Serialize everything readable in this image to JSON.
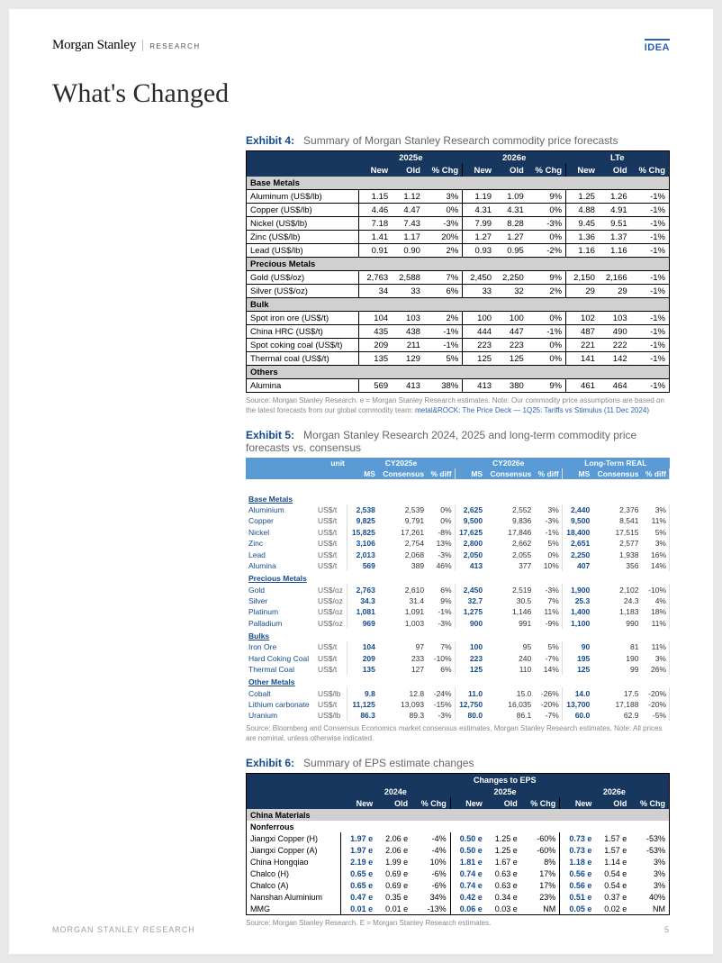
{
  "header": {
    "brand": "Morgan Stanley",
    "sub": "RESEARCH",
    "idea": "IDEA"
  },
  "title": "What's Changed",
  "footer": {
    "left": "MORGAN STANLEY RESEARCH",
    "page": "5"
  },
  "ex4": {
    "num": "Exhibit 4:",
    "title": "Summary of Morgan Stanley Research commodity price forecasts",
    "source_a": "Source: Morgan Stanley Research. e = Morgan Stanley Research estimates. Note: Our commodity price assumptions are based on the latest forecasts from our global commodity team: ",
    "source_link": "metal&ROCK: The Price Deck — 1Q25: Tariffs vs Stimulus (11 Dec 2024)",
    "groups": [
      "2025e",
      "2026e",
      "LTe"
    ],
    "cols": [
      "New",
      "Old",
      "% Chg"
    ],
    "sections": [
      {
        "name": "Base Metals",
        "rows": [
          {
            "n": "Aluminum (US$/lb)",
            "v": [
              "1.15",
              "1.12",
              "3%",
              "1.19",
              "1.09",
              "9%",
              "1.25",
              "1.26",
              "-1%"
            ]
          },
          {
            "n": "Copper (US$/lb)",
            "v": [
              "4.46",
              "4.47",
              "0%",
              "4.31",
              "4.31",
              "0%",
              "4.88",
              "4.91",
              "-1%"
            ]
          },
          {
            "n": "Nickel (US$/lb)",
            "v": [
              "7.18",
              "7.43",
              "-3%",
              "7.99",
              "8.28",
              "-3%",
              "9.45",
              "9.51",
              "-1%"
            ]
          },
          {
            "n": "Zinc (US$/lb)",
            "v": [
              "1.41",
              "1.17",
              "20%",
              "1.27",
              "1.27",
              "0%",
              "1.36",
              "1.37",
              "-1%"
            ]
          },
          {
            "n": "Lead (US$/lb)",
            "v": [
              "0.91",
              "0.90",
              "2%",
              "0.93",
              "0.95",
              "-2%",
              "1.16",
              "1.16",
              "-1%"
            ]
          }
        ]
      },
      {
        "name": "Precious Metals",
        "rows": [
          {
            "n": "Gold (US$/oz)",
            "v": [
              "2,763",
              "2,588",
              "7%",
              "2,450",
              "2,250",
              "9%",
              "2,150",
              "2,166",
              "-1%"
            ]
          },
          {
            "n": "Silver (US$/oz)",
            "v": [
              "34",
              "33",
              "6%",
              "33",
              "32",
              "2%",
              "29",
              "29",
              "-1%"
            ]
          }
        ]
      },
      {
        "name": "Bulk",
        "rows": [
          {
            "n": "Spot iron ore (US$/t)",
            "v": [
              "104",
              "103",
              "2%",
              "100",
              "100",
              "0%",
              "102",
              "103",
              "-1%"
            ]
          },
          {
            "n": "China HRC (US$/t)",
            "v": [
              "435",
              "438",
              "-1%",
              "444",
              "447",
              "-1%",
              "487",
              "490",
              "-1%"
            ]
          },
          {
            "n": "Spot coking coal (US$/t)",
            "v": [
              "209",
              "211",
              "-1%",
              "223",
              "223",
              "0%",
              "221",
              "222",
              "-1%"
            ]
          },
          {
            "n": "Thermal coal (US$/t)",
            "v": [
              "135",
              "129",
              "5%",
              "125",
              "125",
              "0%",
              "141",
              "142",
              "-1%"
            ]
          }
        ]
      },
      {
        "name": "Others",
        "rows": [
          {
            "n": "Alumina",
            "v": [
              "569",
              "413",
              "38%",
              "413",
              "380",
              "9%",
              "461",
              "464",
              "-1%"
            ]
          }
        ]
      }
    ]
  },
  "ex5": {
    "num": "Exhibit 5:",
    "title": "Morgan Stanley Research 2024, 2025 and long-term commodity price forecasts vs. consensus",
    "source": "Source: Bloomberg and Consensus Economics market consensus estimates, Morgan Stanley Research estimates. Note: All prices are nominal, unless otherwise indicated.",
    "groups": [
      "CY2025e",
      "CY2026e",
      "Long-Term REAL"
    ],
    "cols": [
      "MS",
      "Consensus",
      "% diff"
    ],
    "unit_label": "unit",
    "sections": [
      {
        "name": "Base Metals",
        "rows": [
          {
            "n": "Aluminium",
            "u": "US$/t",
            "v": [
              "2,538",
              "2,539",
              "0%",
              "2,625",
              "2,552",
              "3%",
              "2,440",
              "2,376",
              "3%"
            ]
          },
          {
            "n": "Copper",
            "u": "US$/t",
            "v": [
              "9,825",
              "9,791",
              "0%",
              "9,500",
              "9,836",
              "-3%",
              "9,500",
              "8,541",
              "11%"
            ]
          },
          {
            "n": "Nickel",
            "u": "US$/t",
            "v": [
              "15,825",
              "17,261",
              "-8%",
              "17,625",
              "17,846",
              "-1%",
              "18,400",
              "17,515",
              "5%"
            ]
          },
          {
            "n": "Zinc",
            "u": "US$/t",
            "v": [
              "3,106",
              "2,754",
              "13%",
              "2,800",
              "2,662",
              "5%",
              "2,651",
              "2,577",
              "3%"
            ]
          },
          {
            "n": "Lead",
            "u": "US$/t",
            "v": [
              "2,013",
              "2,068",
              "-3%",
              "2,050",
              "2,055",
              "0%",
              "2,250",
              "1,938",
              "16%"
            ]
          },
          {
            "n": "Alumina",
            "u": "US$/t",
            "v": [
              "569",
              "389",
              "46%",
              "413",
              "377",
              "10%",
              "407",
              "356",
              "14%"
            ]
          }
        ]
      },
      {
        "name": "Precious Metals",
        "rows": [
          {
            "n": "Gold",
            "u": "US$/oz",
            "v": [
              "2,763",
              "2,610",
              "6%",
              "2,450",
              "2,519",
              "-3%",
              "1,900",
              "2,102",
              "-10%"
            ]
          },
          {
            "n": "Silver",
            "u": "US$/oz",
            "v": [
              "34.3",
              "31.4",
              "9%",
              "32.7",
              "30.5",
              "7%",
              "25.3",
              "24.3",
              "4%"
            ]
          },
          {
            "n": "Platinum",
            "u": "US$/oz",
            "v": [
              "1,081",
              "1,091",
              "-1%",
              "1,275",
              "1,146",
              "11%",
              "1,400",
              "1,183",
              "18%"
            ]
          },
          {
            "n": "Palladium",
            "u": "US$/oz",
            "v": [
              "969",
              "1,003",
              "-3%",
              "900",
              "991",
              "-9%",
              "1,100",
              "990",
              "11%"
            ]
          }
        ]
      },
      {
        "name": "Bulks",
        "rows": [
          {
            "n": "Iron Ore",
            "u": "US$/t",
            "v": [
              "104",
              "97",
              "7%",
              "100",
              "95",
              "5%",
              "90",
              "81",
              "11%"
            ]
          },
          {
            "n": "Hard Coking Coal",
            "u": "US$/t",
            "v": [
              "209",
              "233",
              "-10%",
              "223",
              "240",
              "-7%",
              "195",
              "190",
              "3%"
            ]
          },
          {
            "n": "Thermal Coal",
            "u": "US$/t",
            "v": [
              "135",
              "127",
              "6%",
              "125",
              "110",
              "14%",
              "125",
              "99",
              "26%"
            ]
          }
        ]
      },
      {
        "name": "Other Metals",
        "rows": [
          {
            "n": "Cobalt",
            "u": "US$/lb",
            "v": [
              "9.8",
              "12.8",
              "-24%",
              "11.0",
              "15.0",
              "-26%",
              "14.0",
              "17.5",
              "-20%"
            ]
          },
          {
            "n": "Lithium carbonate",
            "u": "US$/t",
            "v": [
              "11,125",
              "13,093",
              "-15%",
              "12,750",
              "16,035",
              "-20%",
              "13,700",
              "17,188",
              "-20%"
            ]
          },
          {
            "n": "Uranium",
            "u": "US$/lb",
            "v": [
              "86.3",
              "89.3",
              "-3%",
              "80.0",
              "86.1",
              "-7%",
              "60.0",
              "62.9",
              "-5%"
            ]
          }
        ]
      }
    ]
  },
  "ex6": {
    "num": "Exhibit 6:",
    "title": "Summary of EPS estimate changes",
    "source": "Source: Morgan Stanley Research. E = Morgan Stanley Research estimates.",
    "top": "Changes to EPS",
    "groups": [
      "2024e",
      "2025e",
      "2026e"
    ],
    "cols": [
      "New",
      "Old",
      "% Chg"
    ],
    "section": "China Materials",
    "subsection": "Nonferrous",
    "rows": [
      {
        "n": "Jiangxi Copper (H)",
        "v": [
          "1.97 e",
          "2.06 e",
          "-4%",
          "0.50 e",
          "1.25 e",
          "-60%",
          "0.73 e",
          "1.57 e",
          "-53%"
        ]
      },
      {
        "n": "Jiangxi Copper (A)",
        "v": [
          "1.97 e",
          "2.06 e",
          "-4%",
          "0.50 e",
          "1.25 e",
          "-60%",
          "0.73 e",
          "1.57 e",
          "-53%"
        ]
      },
      {
        "n": "China Hongqiao",
        "v": [
          "2.19 e",
          "1.99 e",
          "10%",
          "1.81 e",
          "1.67 e",
          "8%",
          "1.18 e",
          "1.14 e",
          "3%"
        ]
      },
      {
        "n": "Chalco (H)",
        "v": [
          "0.65 e",
          "0.69 e",
          "-6%",
          "0.74 e",
          "0.63 e",
          "17%",
          "0.56 e",
          "0.54 e",
          "3%"
        ]
      },
      {
        "n": "Chalco (A)",
        "v": [
          "0.65 e",
          "0.69 e",
          "-6%",
          "0.74 e",
          "0.63 e",
          "17%",
          "0.56 e",
          "0.54 e",
          "3%"
        ]
      },
      {
        "n": "Nanshan Aluminium",
        "v": [
          "0.47 e",
          "0.35 e",
          "34%",
          "0.42 e",
          "0.34 e",
          "23%",
          "0.51 e",
          "0.37 e",
          "40%"
        ]
      },
      {
        "n": "MMG",
        "v": [
          "0.01 e",
          "0.01 e",
          "-13%",
          "0.06 e",
          "0.03 e",
          "NM",
          "0.05 e",
          "0.02 e",
          "NM"
        ]
      }
    ]
  }
}
